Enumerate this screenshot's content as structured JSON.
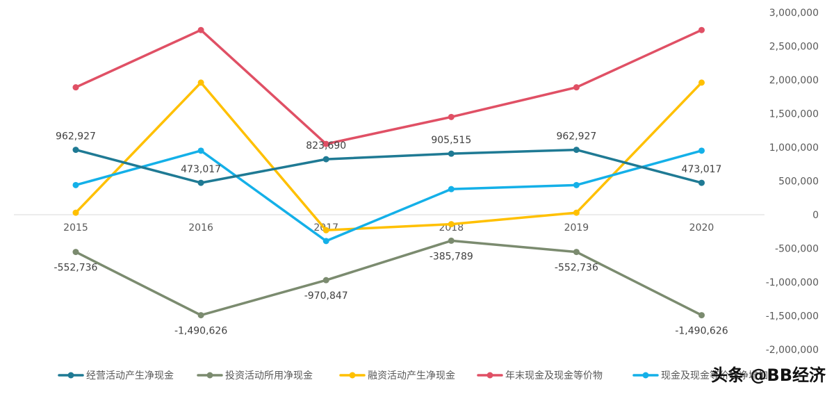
{
  "chart_data": {
    "type": "line",
    "categories": [
      "2015",
      "2016",
      "2017",
      "2018",
      "2019",
      "2020"
    ],
    "ylim": [
      -2000000,
      3000000
    ],
    "y_ticks": [
      3000000,
      2500000,
      2000000,
      1500000,
      1000000,
      500000,
      0,
      -500000,
      -1000000,
      -1500000,
      -2000000
    ],
    "y_tick_labels": [
      "3,000,000",
      "2,500,000",
      "2,000,000",
      "1,500,000",
      "1,000,000",
      "500,000",
      "0",
      "-500,000",
      "-1,000,000",
      "-1,500,000",
      "-2,000,000"
    ],
    "y_axis_side": "right",
    "grid": false,
    "legend_position": "bottom",
    "series": [
      {
        "name": "经营活动产生净现金",
        "color": "#1F7A94",
        "values": [
          962927,
          473017,
          823690,
          905515,
          962927,
          473017
        ],
        "labels": [
          "962,927",
          "473,017",
          "823,690",
          "905,515",
          "962,927",
          "473,017"
        ],
        "label_position": "above"
      },
      {
        "name": "投资活动所用净现金",
        "color": "#7B8B6F",
        "values": [
          -552736,
          -1490626,
          -970847,
          -385789,
          -552736,
          -1490626
        ],
        "labels": [
          "-552,736",
          "-1,490,626",
          "-970,847",
          "-385,789",
          "-552,736",
          "-1,490,626"
        ],
        "label_position": "below"
      },
      {
        "name": "融资活动产生净现金",
        "color": "#FFC000",
        "values": [
          30000,
          1960000,
          -230000,
          -140000,
          30000,
          1960000
        ]
      },
      {
        "name": "年末现金及现金等价物",
        "color": "#E05065",
        "values": [
          1890000,
          2740000,
          1050000,
          1450000,
          1890000,
          2740000
        ]
      },
      {
        "name": "现金及现金等价物净增加",
        "color": "#14B0E8",
        "values": [
          440000,
          950000,
          -390000,
          380000,
          440000,
          950000
        ]
      }
    ]
  },
  "watermark": "头条 @BB经济"
}
